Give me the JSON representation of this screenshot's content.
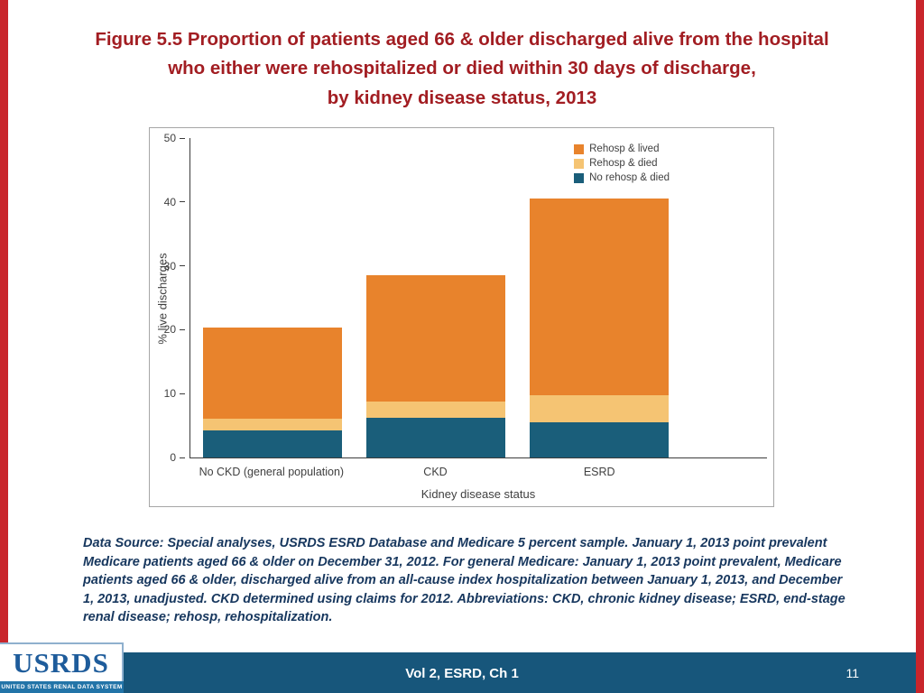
{
  "slide": {
    "title_lines": [
      "Figure 5.5 Proportion of patients aged 66 & older discharged alive from the hospital",
      "who either were rehospitalized or died within 30 days of discharge,",
      "by kidney disease status, 2013"
    ],
    "data_source": "Data Source: Special analyses, USRDS ESRD Database and Medicare 5 percent sample. January 1, 2013 point prevalent Medicare patients aged 66 & older on December 31, 2012. For general Medicare: January 1, 2013 point prevalent, Medicare patients aged 66 & older, discharged alive from an all-cause index hospitalization between January 1, 2013, and December 1, 2013, unadjusted. CKD determined using claims for 2012. Abbreviations: CKD, chronic kidney disease; ESRD, end-stage renal disease; rehosp, rehospitalization.",
    "footer": {
      "center_label": "Vol 2, ESRD, Ch 1",
      "page_number": "11",
      "logo_title": "USRDS",
      "logo_subtitle": "UNITED STATES RENAL DATA SYSTEM"
    },
    "colors": {
      "accent_red": "#C9252B",
      "title_maroon": "#A21D22",
      "footer_teal": "#17567B",
      "note_navy": "#17375E"
    }
  },
  "chart_data": {
    "type": "bar",
    "stacked": true,
    "title": "",
    "categories": [
      "No CKD (general population)",
      "CKD",
      "ESRD"
    ],
    "series": [
      {
        "name": "No rehosp & died",
        "color": "#1A5E7A",
        "values": [
          4.3,
          6.2,
          5.5
        ]
      },
      {
        "name": "Rehosp & died",
        "color": "#F5C473",
        "values": [
          1.8,
          2.6,
          4.2
        ]
      },
      {
        "name": "Rehosp & lived",
        "color": "#E8832C",
        "values": [
          14.2,
          19.8,
          30.8
        ]
      }
    ],
    "stack_totals": [
      20.3,
      28.6,
      40.5
    ],
    "xlabel": "Kidney disease status",
    "ylabel": "% live discharges",
    "ylim": [
      0,
      50
    ],
    "yticks": [
      0,
      10,
      20,
      30,
      40,
      50
    ],
    "grid": false,
    "legend_position": "top-right",
    "legend_order_top_to_bottom": [
      "Rehosp & lived",
      "Rehosp & died",
      "No rehosp & died"
    ]
  }
}
